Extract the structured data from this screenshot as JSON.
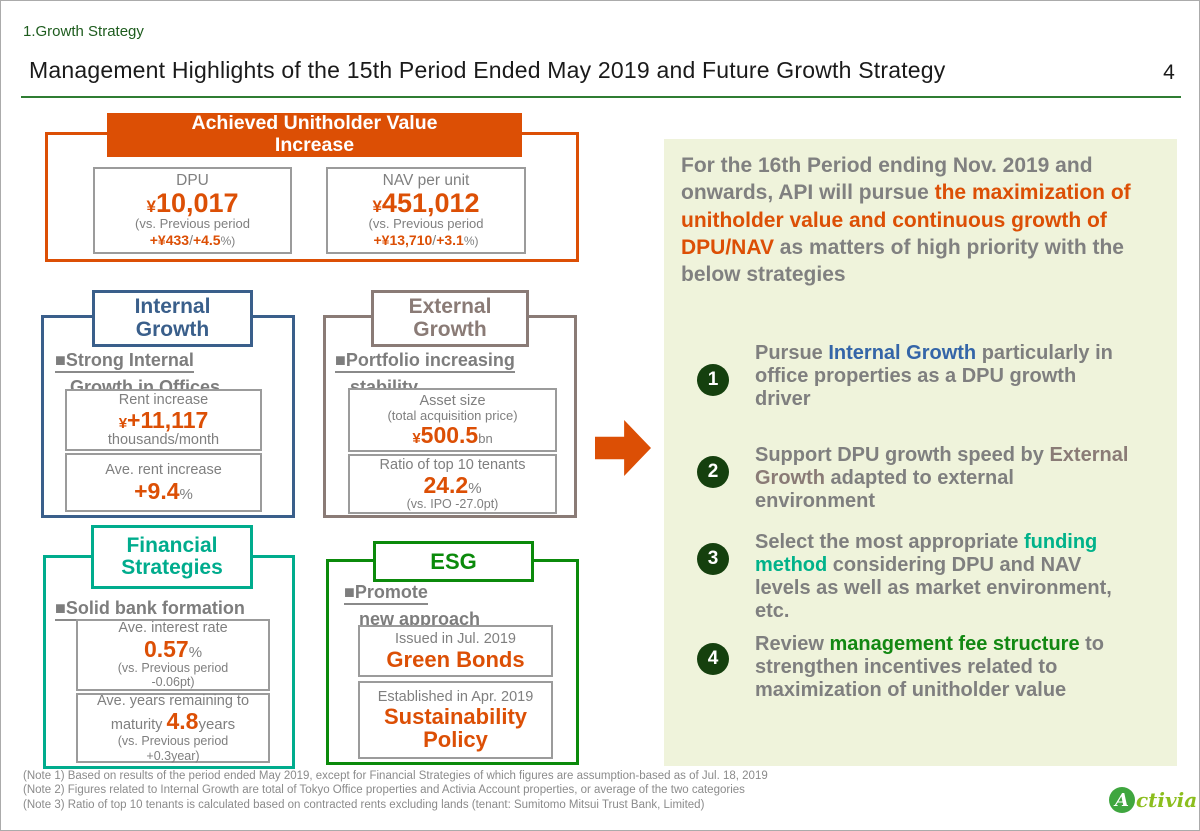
{
  "colors": {
    "accent_orange": "#DC4F05",
    "internal_blue": "#3A5F8B",
    "external_taupe": "#8A7B76",
    "financial_teal": "#00AC8D",
    "esg_green": "#0B8A0B",
    "badge_dark_green": "#15400E",
    "panel_background": "#EFF3DB",
    "body_gray": "#7F7F7F",
    "header_green": "#1E5C1E"
  },
  "header": {
    "eyebrow": "1.Growth Strategy",
    "title": "Management Highlights of the 15th Period Ended May 2019 and Future Growth Strategy",
    "page_number": "4"
  },
  "achieved": {
    "title_line1": "Achieved Unitholder Value",
    "title_line2": "Increase",
    "dpu": {
      "label": "DPU",
      "currency": "¥",
      "value": "10,017",
      "note": "(vs. Previous period",
      "delta_amount": "+¥433",
      "separator": "/",
      "delta_percent": "+4.5",
      "percent_close": "%)"
    },
    "nav": {
      "label": "NAV per unit",
      "currency": "¥",
      "value": "451,012",
      "note": "(vs. Previous period",
      "delta_amount": "+¥13,710",
      "separator": "/",
      "delta_percent": "+3.1",
      "percent_close": "%)"
    }
  },
  "internal_growth": {
    "title_line1": "Internal",
    "title_line2": "Growth",
    "heading_line1": "■Strong Internal",
    "heading_line2": "Growth in Offices",
    "rent_increase": {
      "label": "Rent increase",
      "currency": "¥",
      "value": "+11,117",
      "unit_line": "thousands/month"
    },
    "ave_rent_increase": {
      "label": "Ave. rent increase",
      "value": "+9.4",
      "unit": "%"
    }
  },
  "external_growth": {
    "title_line1": "External",
    "title_line2": "Growth",
    "heading_line1": "■Portfolio increasing",
    "heading_line2": "stability",
    "asset_size": {
      "label_line1": "Asset size",
      "label_line2": "(total acquisition price)",
      "currency": "¥",
      "value": "500.5",
      "unit": "bn"
    },
    "tenant_ratio": {
      "label": "Ratio of top 10 tenants",
      "value": "24.2",
      "unit": "%",
      "note": "(vs. IPO -27.0pt)"
    }
  },
  "financial_strategies": {
    "title_line1": "Financial",
    "title_line2": "Strategies",
    "heading": "■Solid bank formation",
    "interest_rate": {
      "label": "Ave. interest rate",
      "value": "0.57",
      "unit": "%",
      "note_line1": "(vs. Previous period",
      "note_line2": "-0.06pt)"
    },
    "maturity": {
      "label_line1": "Ave. years remaining to",
      "label_line2_prefix": "maturity ",
      "value": "4.8",
      "unit": "years",
      "note_line1": "(vs. Previous period",
      "note_line2": "+0.3year)"
    }
  },
  "esg": {
    "title": "ESG",
    "heading_line1": "■Promote",
    "heading_line2": "new approach",
    "green_bonds": {
      "label": "Issued in Jul. 2019",
      "value": "Green Bonds"
    },
    "sustainability": {
      "label": "Established in Apr. 2019",
      "value_line1": "Sustainability",
      "value_line2": "Policy"
    }
  },
  "strategy_panel": {
    "intro": {
      "segment1": "For the 16th Period ending Nov. 2019 and onwards, API will pursue ",
      "highlight": "the maximization of unitholder value and continuous growth of DPU/NAV",
      "segment2": " as matters of high priority with the below strategies"
    },
    "items": [
      {
        "number": "1",
        "pre": "Pursue ",
        "keyword": "Internal Growth",
        "post": " particularly in office properties as a DPU growth driver"
      },
      {
        "number": "2",
        "pre": "Support DPU growth speed by ",
        "keyword": "External Growth",
        "post": " adapted to external environment"
      },
      {
        "number": "3",
        "pre": "Select the most appropriate ",
        "keyword": "funding method",
        "post": " considering DPU and NAV levels as well as market environment, etc."
      },
      {
        "number": "4",
        "pre": "Review ",
        "keyword": "management fee structure",
        "post": " to strengthen incentives related to maximization of unitholder value"
      }
    ]
  },
  "notes": [
    "(Note 1) Based on results of the period ended May 2019, except for Financial Strategies of which figures are assumption-based as of Jul. 18, 2019",
    "(Note 2) Figures related to Internal Growth are total of Tokyo Office properties and Activia Account properties, or average of the two categories",
    "(Note 3) Ratio of top 10 tenants is calculated based on contracted rents excluding lands (tenant: Sumitomo Mitsui Trust Bank, Limited)"
  ],
  "logo": {
    "initial": "A",
    "rest": "ctivia"
  }
}
